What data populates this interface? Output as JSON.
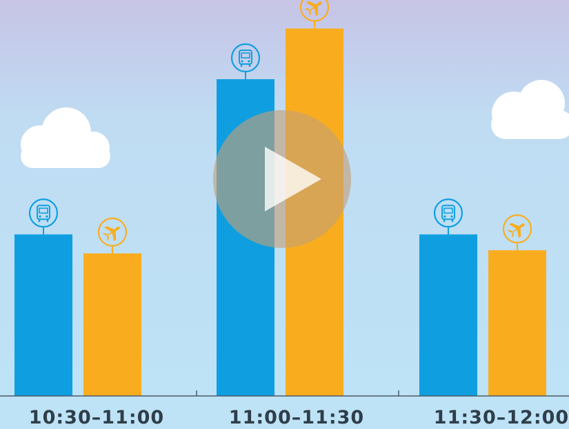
{
  "chart_data": {
    "type": "bar",
    "title": "",
    "xlabel": "",
    "ylabel": "",
    "categories": [
      "10:30–11:00",
      "11:00–11:30",
      "11:30–12:00"
    ],
    "series": [
      {
        "icon": "bus-icon",
        "color": "#0f9fe0",
        "values": [
          51,
          100,
          51
        ]
      },
      {
        "icon": "plane-icon",
        "color": "#f9ad1e",
        "values": [
          45,
          116,
          46
        ]
      }
    ],
    "ylim": [
      0,
      125
    ],
    "grid": false,
    "legend": "none"
  },
  "colors": {
    "sky_top": "#c7c4e6",
    "sky_bottom": "#bee3f6",
    "cloud": "#ffffff",
    "axis": "#4a5a66",
    "play_overlay": "#c3a078"
  },
  "player": {
    "control_icon": "play-icon"
  }
}
